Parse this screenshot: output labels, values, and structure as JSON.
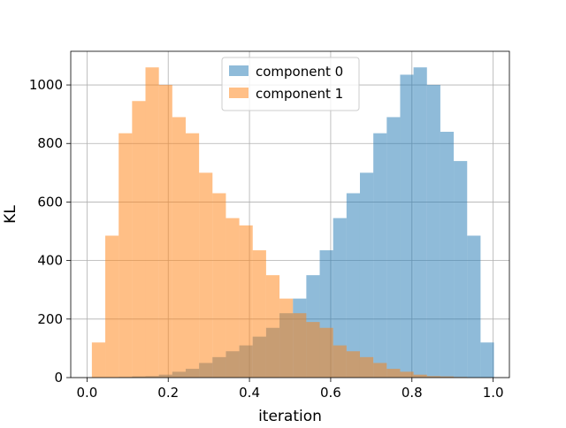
{
  "chart_data": {
    "type": "histogram",
    "title": "",
    "xlabel": "iteration",
    "ylabel": "KL",
    "xlim": [
      -0.04,
      1.04
    ],
    "ylim": [
      0,
      1115
    ],
    "grid": true,
    "legend_position": "top-center",
    "alpha": 0.5,
    "bin_width": 0.033,
    "xticks": [
      0.0,
      0.2,
      0.4,
      0.6,
      0.8,
      1.0
    ],
    "xtick_labels": [
      "0.0",
      "0.2",
      "0.4",
      "0.6",
      "0.8",
      "1.0"
    ],
    "yticks": [
      0,
      200,
      400,
      600,
      800,
      1000
    ],
    "ytick_labels": [
      "0",
      "200",
      "400",
      "600",
      "800",
      "1000"
    ],
    "series": [
      {
        "name": "component 0",
        "color": "#1f77b4",
        "bin_starts": [
          0.078,
          0.111,
          0.144,
          0.177,
          0.21,
          0.243,
          0.276,
          0.309,
          0.342,
          0.375,
          0.408,
          0.441,
          0.474,
          0.507,
          0.54,
          0.573,
          0.606,
          0.639,
          0.672,
          0.705,
          0.738,
          0.771,
          0.804,
          0.837,
          0.87,
          0.903,
          0.936,
          0.969
        ],
        "values": [
          2,
          4,
          5,
          10,
          20,
          30,
          50,
          70,
          90,
          110,
          140,
          170,
          220,
          270,
          350,
          435,
          545,
          630,
          700,
          835,
          890,
          1035,
          1060,
          1000,
          840,
          740,
          485,
          120
        ]
      },
      {
        "name": "component 1",
        "color": "#ff7f0e",
        "bin_starts": [
          0.012,
          0.045,
          0.078,
          0.111,
          0.144,
          0.177,
          0.21,
          0.243,
          0.276,
          0.309,
          0.342,
          0.375,
          0.408,
          0.441,
          0.474,
          0.507,
          0.54,
          0.573,
          0.606,
          0.639,
          0.672,
          0.705,
          0.738,
          0.771,
          0.804,
          0.837,
          0.87,
          0.903
        ],
        "values": [
          120,
          485,
          835,
          945,
          1060,
          1000,
          890,
          835,
          700,
          630,
          545,
          520,
          435,
          350,
          270,
          220,
          190,
          170,
          110,
          90,
          70,
          50,
          30,
          20,
          10,
          5,
          4,
          2
        ]
      }
    ]
  }
}
